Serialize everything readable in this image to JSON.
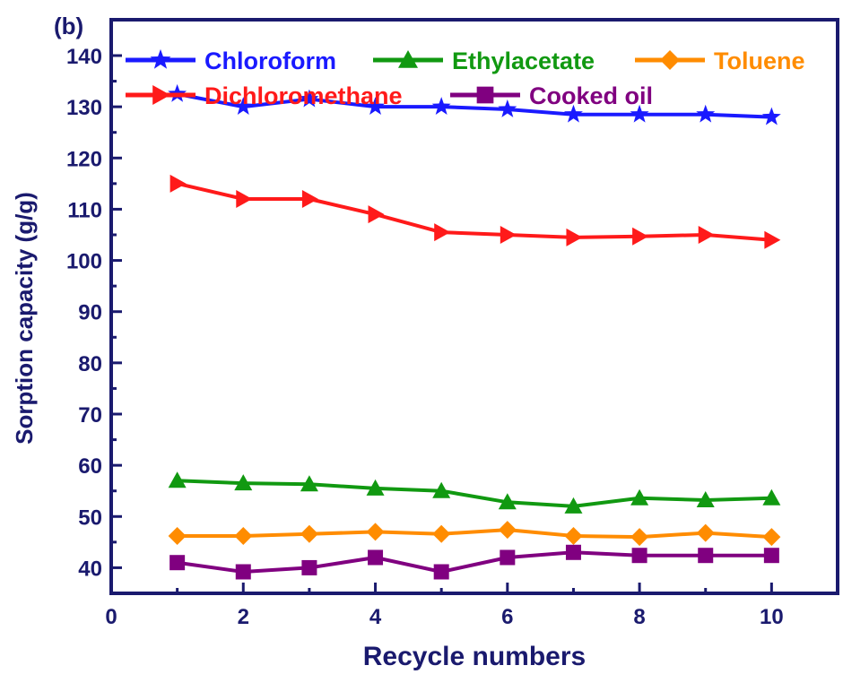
{
  "panel_label": "(b)",
  "chart_data": {
    "type": "line",
    "xlabel": "Recycle numbers",
    "ylabel": "Sorption capacity (g/g)",
    "xlim": [
      0,
      11
    ],
    "ylim": [
      35,
      147
    ],
    "x_ticks": [
      0,
      2,
      4,
      6,
      8,
      10
    ],
    "y_ticks": [
      40,
      50,
      60,
      70,
      80,
      90,
      100,
      110,
      120,
      130,
      140
    ],
    "grid": false,
    "legend_position": "top",
    "x": [
      1,
      2,
      3,
      4,
      5,
      6,
      7,
      8,
      9,
      10
    ],
    "series": [
      {
        "name": "Chloroform",
        "color": "#1a1aff",
        "marker": "star",
        "values": [
          132.5,
          130,
          131.5,
          130,
          130,
          129.5,
          128.5,
          128.5,
          128.5,
          128
        ]
      },
      {
        "name": "Ethylacetate",
        "color": "#119911",
        "marker": "triangle-up",
        "values": [
          57,
          56.5,
          56.3,
          55.5,
          55,
          52.8,
          52,
          53.6,
          53.2,
          53.6
        ]
      },
      {
        "name": "Toluene",
        "color": "#ff8c00",
        "marker": "diamond",
        "values": [
          46.2,
          46.2,
          46.6,
          47,
          46.6,
          47.4,
          46.2,
          46,
          46.8,
          46
        ]
      },
      {
        "name": "Dichloromethane",
        "color": "#ff1a1a",
        "marker": "triangle-right",
        "values": [
          115,
          112,
          112,
          109,
          105.5,
          105,
          104.5,
          104.7,
          105,
          104
        ]
      },
      {
        "name": "Cooked oil",
        "color": "#800080",
        "marker": "square",
        "values": [
          41,
          39.2,
          40,
          42,
          39.2,
          42,
          43,
          42.4,
          42.4,
          42.4
        ]
      }
    ]
  }
}
